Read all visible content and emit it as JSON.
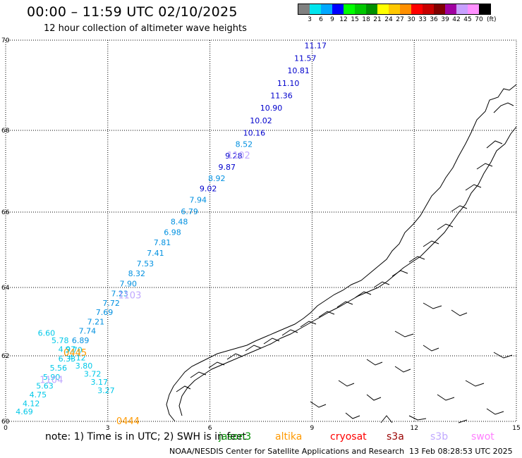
{
  "header": {
    "title": "00:00 – 11:59 UTC 02/10/2025",
    "subtitle": "12 hour collection of altimeter wave heights"
  },
  "legend": {
    "unit": "(ft)",
    "ticks": [
      "3",
      "6",
      "9",
      "12",
      "15",
      "18",
      "21",
      "24",
      "27",
      "30",
      "33",
      "36",
      "39",
      "42",
      "45",
      "70"
    ],
    "colors": [
      "#808080",
      "#00e5ee",
      "#00a8ff",
      "#0000ff",
      "#00ff00",
      "#00c800",
      "#009000",
      "#ffff00",
      "#ffc800",
      "#ff9000",
      "#ff0000",
      "#c80000",
      "#800000",
      "#a000a0",
      "#c8a0ff",
      "#ff90ff",
      "#000000"
    ]
  },
  "axes": {
    "x_ticks": [
      "0",
      "3",
      "6",
      "9",
      "12",
      "15"
    ],
    "y_ticks": [
      "70",
      "68",
      "66",
      "64",
      "62",
      "60"
    ]
  },
  "chart_data": {
    "type": "scatter",
    "xlim": [
      0,
      15
    ],
    "ylim": [
      60,
      70
    ],
    "xlabel": "",
    "ylabel": "",
    "passes": [
      {
        "label": "1102",
        "color": "#c0a8ff",
        "x": 6.5,
        "y": 67.4
      },
      {
        "label": "1103",
        "color": "#c0a8ff",
        "x": 3.3,
        "y": 63.78
      },
      {
        "label": "1104",
        "color": "#c0a8ff",
        "x": 1.0,
        "y": 61.28
      },
      {
        "label": "0445",
        "color": "#ff9900",
        "x": 1.7,
        "y": 62.1
      },
      {
        "label": "0444",
        "color": "#ff9900",
        "x": 3.25,
        "y": 60.02
      }
    ],
    "points": [
      {
        "x": 9.1,
        "y": 69.88,
        "v": "11.17",
        "c": "#0000cc"
      },
      {
        "x": 8.8,
        "y": 69.6,
        "v": "11.57",
        "c": "#0000cc"
      },
      {
        "x": 8.6,
        "y": 69.33,
        "v": "10.81",
        "c": "#0000cc"
      },
      {
        "x": 8.3,
        "y": 69.05,
        "v": "11.10",
        "c": "#0000cc"
      },
      {
        "x": 8.1,
        "y": 68.77,
        "v": "11.36",
        "c": "#0000cc"
      },
      {
        "x": 7.8,
        "y": 68.5,
        "v": "10.90",
        "c": "#0000cc"
      },
      {
        "x": 7.5,
        "y": 68.22,
        "v": "10.02",
        "c": "#0000cc"
      },
      {
        "x": 7.3,
        "y": 67.94,
        "v": "10.16",
        "c": "#0000cc"
      },
      {
        "x": 7.0,
        "y": 67.66,
        "v": "8.52",
        "c": "#0090e0"
      },
      {
        "x": 6.7,
        "y": 67.38,
        "v": "9.28",
        "c": "#0000cc"
      },
      {
        "x": 6.5,
        "y": 67.1,
        "v": "9.87",
        "c": "#0000cc"
      },
      {
        "x": 6.2,
        "y": 66.83,
        "v": "8.92",
        "c": "#0090e0"
      },
      {
        "x": 5.95,
        "y": 66.58,
        "v": "9.02",
        "c": "#0000cc"
      },
      {
        "x": 5.65,
        "y": 66.3,
        "v": "7.94",
        "c": "#0090e0"
      },
      {
        "x": 5.4,
        "y": 66.02,
        "v": "6.79",
        "c": "#0090e0"
      },
      {
        "x": 5.1,
        "y": 65.75,
        "v": "8.48",
        "c": "#0090e0"
      },
      {
        "x": 4.9,
        "y": 65.47,
        "v": "6.98",
        "c": "#0090e0"
      },
      {
        "x": 4.6,
        "y": 65.2,
        "v": "7.81",
        "c": "#0090e0"
      },
      {
        "x": 4.4,
        "y": 64.92,
        "v": "7.41",
        "c": "#0090e0"
      },
      {
        "x": 4.1,
        "y": 64.64,
        "v": "7.53",
        "c": "#0090e0"
      },
      {
        "x": 3.85,
        "y": 64.37,
        "v": "8.32",
        "c": "#0090e0"
      },
      {
        "x": 3.6,
        "y": 64.1,
        "v": "7.90",
        "c": "#0090e0"
      },
      {
        "x": 3.35,
        "y": 63.82,
        "v": "7.23",
        "c": "#0090e0"
      },
      {
        "x": 3.1,
        "y": 63.55,
        "v": "7.72",
        "c": "#0090e0"
      },
      {
        "x": 2.9,
        "y": 63.28,
        "v": "7.69",
        "c": "#0090e0"
      },
      {
        "x": 2.65,
        "y": 63.0,
        "v": "7.21",
        "c": "#0090e0"
      },
      {
        "x": 2.4,
        "y": 62.73,
        "v": "7.74",
        "c": "#0090e0"
      },
      {
        "x": 2.2,
        "y": 62.45,
        "v": "6.89",
        "c": "#0090e0"
      },
      {
        "x": 2.0,
        "y": 62.18,
        "v": "5.70",
        "c": "#00c8e8"
      },
      {
        "x": 1.8,
        "y": 61.91,
        "v": "6.33",
        "c": "#00c8e8"
      },
      {
        "x": 1.55,
        "y": 61.63,
        "v": "5.56",
        "c": "#00c8e8"
      },
      {
        "x": 1.35,
        "y": 61.36,
        "v": "5.90",
        "c": "#00c8e8"
      },
      {
        "x": 1.15,
        "y": 61.09,
        "v": "5.63",
        "c": "#00c8e8"
      },
      {
        "x": 0.95,
        "y": 60.82,
        "v": "4.75",
        "c": "#00c8e8"
      },
      {
        "x": 0.75,
        "y": 60.55,
        "v": "4.12",
        "c": "#00c8e8"
      },
      {
        "x": 0.55,
        "y": 60.3,
        "v": "4.69",
        "c": "#00c8e8"
      },
      {
        "x": 1.2,
        "y": 62.67,
        "v": "6.60",
        "c": "#00c8e8"
      },
      {
        "x": 1.6,
        "y": 62.45,
        "v": "5.78",
        "c": "#00c8e8"
      },
      {
        "x": 1.8,
        "y": 62.2,
        "v": "4.97",
        "c": "#00c8e8"
      },
      {
        "x": 2.1,
        "y": 61.95,
        "v": "4.12",
        "c": "#00c8e8"
      },
      {
        "x": 2.3,
        "y": 61.7,
        "v": "3.80",
        "c": "#00c8e8"
      },
      {
        "x": 2.55,
        "y": 61.45,
        "v": "3.72",
        "c": "#00c8e8"
      },
      {
        "x": 2.75,
        "y": 61.2,
        "v": "3.17",
        "c": "#00c8e8"
      },
      {
        "x": 2.95,
        "y": 60.95,
        "v": "3.27",
        "c": "#00c8e8"
      }
    ]
  },
  "notes": {
    "text": "note:  1) Time is in UTC;  2) SWH is in feet",
    "satellites": [
      {
        "name": "jason3",
        "color": "#009000"
      },
      {
        "name": "altika",
        "color": "#ff9900"
      },
      {
        "name": "cryosat",
        "color": "#ff0000"
      },
      {
        "name": "s3a",
        "color": "#990000"
      },
      {
        "name": "s3b",
        "color": "#c0a8ff"
      },
      {
        "name": "swot",
        "color": "#ff80ff"
      }
    ]
  },
  "footer": {
    "credit": "NOAA/NESDIS Center for Satellite Applications and Research",
    "timestamp": "13 Feb 08:28:53 UTC 2025"
  }
}
